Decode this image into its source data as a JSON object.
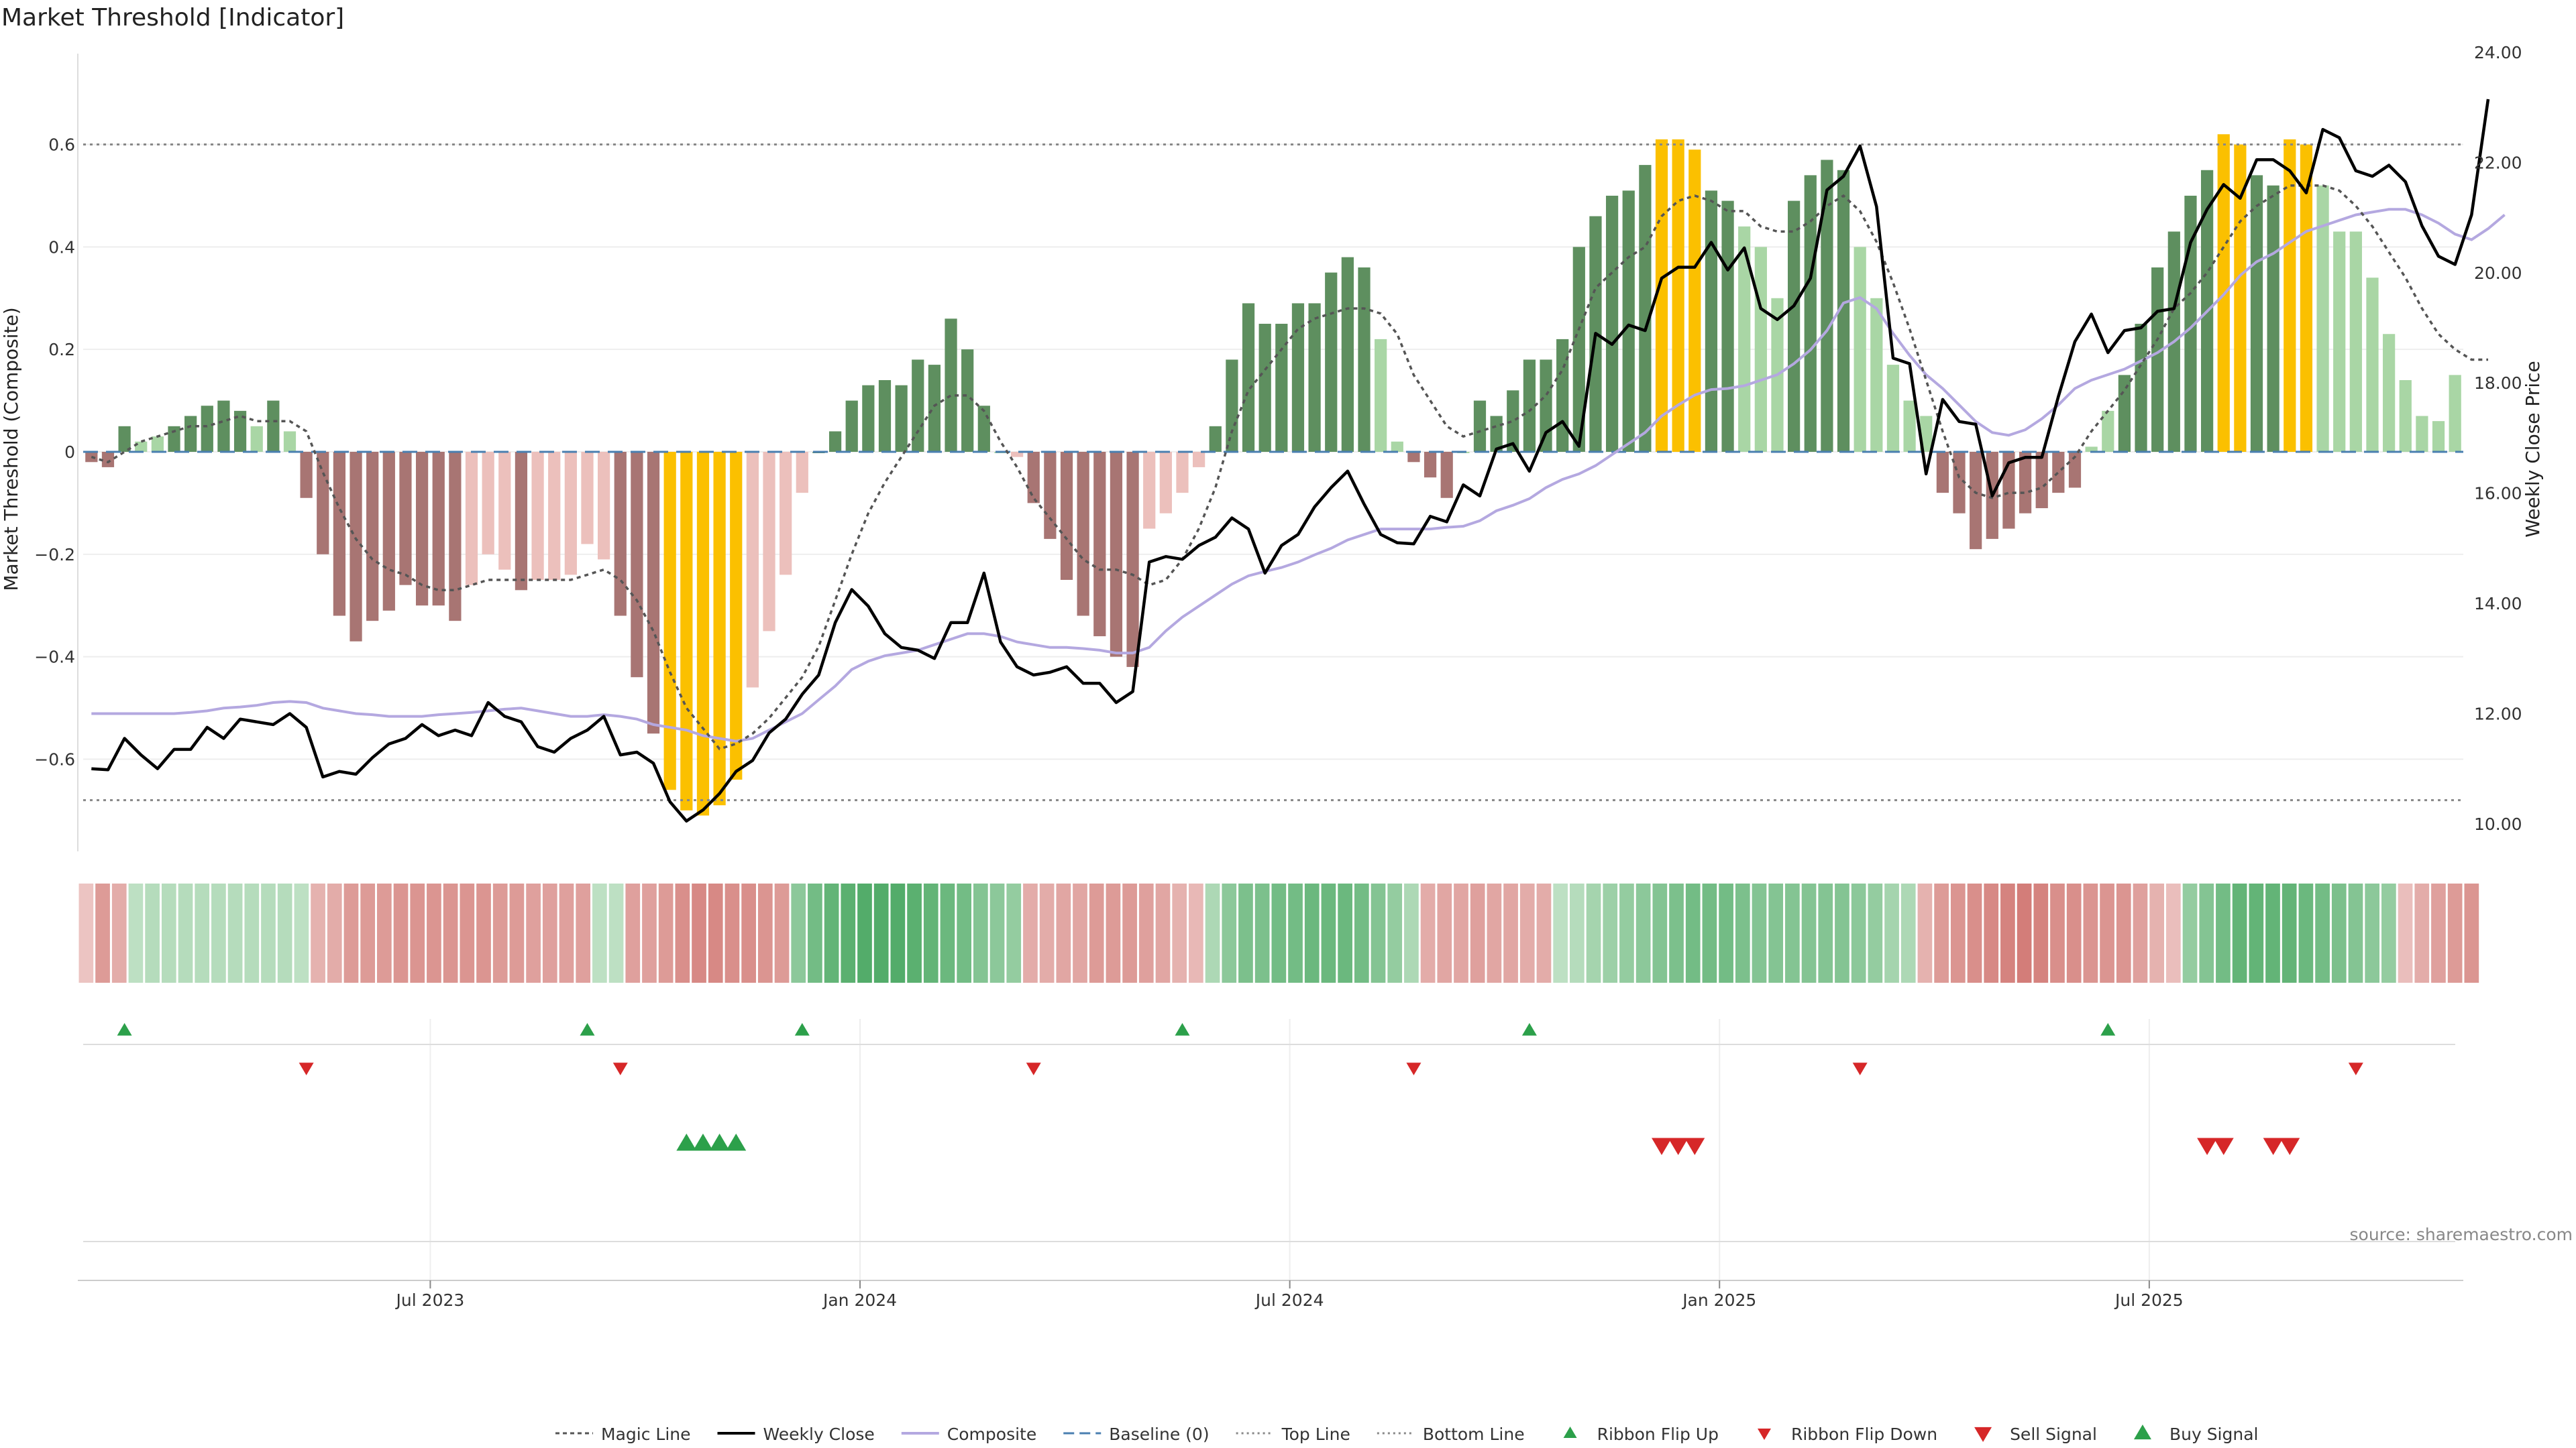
{
  "chart_data": {
    "type": "bar",
    "title": "Market Threshold [Indicator]",
    "ylabel_left": "Market Threshold (Composite)",
    "ylabel_right": "Weekly Close Price",
    "ylim_left": [
      -0.78,
      0.78
    ],
    "ylim_right": [
      9.5,
      24.0
    ],
    "left_ticks": [
      {
        "v": 0.6,
        "label": "0.6"
      },
      {
        "v": 0.4,
        "label": "0.4"
      },
      {
        "v": 0.2,
        "label": "0.2"
      },
      {
        "v": 0,
        "label": "0"
      },
      {
        "v": -0.2,
        "label": "−0.2"
      },
      {
        "v": -0.4,
        "label": "−0.4"
      },
      {
        "v": -0.6,
        "label": "−0.6"
      }
    ],
    "right_ticks": [
      {
        "v": 24,
        "label": "24.00"
      },
      {
        "v": 22,
        "label": "22.00"
      },
      {
        "v": 20,
        "label": "20.00"
      },
      {
        "v": 18,
        "label": "18.00"
      },
      {
        "v": 16,
        "label": "16.00"
      },
      {
        "v": 14,
        "label": "14.00"
      },
      {
        "v": 12,
        "label": "12.00"
      },
      {
        "v": 10,
        "label": "10.00"
      }
    ],
    "x_ticks": [
      {
        "week": 21,
        "label": "Jul 2023"
      },
      {
        "week": 47,
        "label": "Jan 2024"
      },
      {
        "week": 73,
        "label": "Jul 2024"
      },
      {
        "week": 99,
        "label": "Jan 2025"
      },
      {
        "week": 125,
        "label": "Jul 2025"
      }
    ],
    "top_line": 0.6,
    "bottom_line": -0.68,
    "composite": [
      -0.02,
      -0.03,
      0.05,
      0.02,
      0.03,
      0.05,
      0.07,
      0.09,
      0.1,
      0.08,
      0.05,
      0.1,
      0.04,
      -0.09,
      -0.2,
      -0.32,
      -0.37,
      -0.33,
      -0.31,
      -0.26,
      -0.3,
      -0.3,
      -0.33,
      -0.26,
      -0.2,
      -0.23,
      -0.27,
      -0.25,
      -0.25,
      -0.24,
      -0.18,
      -0.21,
      -0.32,
      -0.44,
      -0.55,
      -0.66,
      -0.7,
      -0.71,
      -0.69,
      -0.64,
      -0.46,
      -0.35,
      -0.24,
      -0.08,
      0,
      0.04,
      0.1,
      0.13,
      0.14,
      0.13,
      0.18,
      0.17,
      0.26,
      0.2,
      0.09,
      0,
      -0.01,
      -0.1,
      -0.17,
      -0.25,
      -0.32,
      -0.36,
      -0.4,
      -0.42,
      -0.15,
      -0.12,
      -0.08,
      -0.03,
      0.05,
      0.18,
      0.29,
      0.25,
      0.25,
      0.29,
      0.29,
      0.35,
      0.38,
      0.36,
      0.22,
      0.02,
      -0.02,
      -0.05,
      -0.09,
      0,
      0.1,
      0.07,
      0.12,
      0.18,
      0.18,
      0.22,
      0.4,
      0.46,
      0.5,
      0.51,
      0.56,
      0.61,
      0.61,
      0.59,
      0.51,
      0.49,
      0.44,
      0.4,
      0.3,
      0.49,
      0.54,
      0.57,
      0.55,
      0.4,
      0.3,
      0.17,
      0.1,
      0.07,
      -0.08,
      -0.12,
      -0.19,
      -0.17,
      -0.15,
      -0.12,
      -0.11,
      -0.08,
      -0.07,
      0.01,
      0.08,
      0.15,
      0.25,
      0.36,
      0.43,
      0.5,
      0.55,
      0.62,
      0.6,
      0.54,
      0.52,
      0.61,
      0.6,
      0.52,
      0.43,
      0.43,
      0.34,
      0.23,
      0.14,
      0.07,
      0.06,
      0.15
    ],
    "bar_colors": {
      "strong_neg": "#a87573",
      "light_neg": "#ecc0bc",
      "strong_pos": "#5e8f5f",
      "light_pos": "#a9d6a5",
      "extreme": "#fbc000"
    },
    "weekly_close": [
      11.0,
      10.98,
      11.55,
      11.25,
      11.0,
      11.35,
      11.35,
      11.75,
      11.55,
      11.9,
      11.85,
      11.8,
      12.0,
      11.75,
      10.85,
      10.95,
      10.9,
      11.2,
      11.45,
      11.55,
      11.8,
      11.6,
      11.7,
      11.6,
      12.2,
      11.95,
      11.85,
      11.4,
      11.3,
      11.55,
      11.7,
      11.95,
      11.25,
      11.3,
      11.1,
      10.4,
      10.05,
      10.25,
      10.55,
      10.95,
      11.15,
      11.65,
      11.9,
      12.35,
      12.7,
      13.65,
      14.25,
      13.95,
      13.45,
      13.2,
      13.15,
      13.0,
      13.65,
      13.65,
      14.55,
      13.3,
      12.85,
      12.7,
      12.75,
      12.85,
      12.55,
      12.55,
      12.2,
      12.4,
      14.75,
      14.85,
      14.8,
      15.05,
      15.2,
      15.55,
      15.35,
      14.55,
      15.05,
      15.25,
      15.75,
      16.1,
      16.4,
      15.8,
      15.25,
      15.1,
      15.08,
      15.58,
      15.48,
      16.15,
      15.95,
      16.8,
      16.9,
      16.4,
      17.1,
      17.3,
      16.85,
      18.9,
      18.7,
      19.05,
      18.95,
      19.9,
      20.1,
      20.1,
      20.55,
      20.05,
      20.45,
      19.35,
      19.15,
      19.4,
      19.9,
      21.5,
      21.75,
      22.3,
      21.2,
      18.45,
      18.35,
      16.35,
      17.7,
      17.3,
      17.25,
      15.95,
      16.55,
      16.65,
      16.65,
      17.75,
      18.75,
      19.25,
      18.55,
      18.95,
      19.0,
      19.3,
      19.35,
      20.55,
      21.15,
      21.6,
      21.35,
      22.05,
      22.05,
      21.85,
      21.45,
      22.6,
      22.45,
      21.85,
      21.75,
      21.95,
      21.65,
      20.85,
      20.3,
      20.15,
      21.05,
      23.15
    ],
    "composite_line": [
      12.0,
      12.0,
      12.0,
      12.0,
      12.0,
      12.0,
      12.02,
      12.05,
      12.1,
      12.12,
      12.15,
      12.2,
      12.22,
      12.2,
      12.1,
      12.05,
      12.0,
      11.98,
      11.95,
      11.95,
      11.95,
      11.98,
      12.0,
      12.02,
      12.05,
      12.08,
      12.1,
      12.05,
      12.0,
      11.95,
      11.95,
      11.98,
      11.95,
      11.9,
      11.8,
      11.75,
      11.7,
      11.6,
      11.55,
      11.5,
      11.55,
      11.7,
      11.85,
      12.0,
      12.25,
      12.5,
      12.8,
      12.95,
      13.05,
      13.1,
      13.15,
      13.25,
      13.35,
      13.45,
      13.45,
      13.4,
      13.3,
      13.25,
      13.2,
      13.2,
      13.18,
      13.15,
      13.1,
      13.1,
      13.2,
      13.5,
      13.75,
      13.95,
      14.15,
      14.35,
      14.5,
      14.58,
      14.65,
      14.75,
      14.88,
      15.0,
      15.15,
      15.25,
      15.35,
      15.35,
      15.35,
      15.35,
      15.38,
      15.4,
      15.5,
      15.68,
      15.78,
      15.9,
      16.1,
      16.25,
      16.35,
      16.5,
      16.7,
      16.9,
      17.1,
      17.4,
      17.6,
      17.78,
      17.88,
      17.9,
      17.95,
      18.05,
      18.15,
      18.35,
      18.6,
      18.95,
      19.45,
      19.55,
      19.35,
      18.9,
      18.5,
      18.15,
      17.9,
      17.6,
      17.3,
      17.1,
      17.05,
      17.15,
      17.35,
      17.6,
      17.9,
      18.05,
      18.15,
      18.25,
      18.4,
      18.55,
      18.75,
      19.0,
      19.3,
      19.6,
      19.95,
      20.2,
      20.35,
      20.55,
      20.75,
      20.85,
      20.95,
      21.05,
      21.1,
      21.15,
      21.15,
      21.05,
      20.9,
      20.7,
      20.6,
      20.8,
      21.05
    ],
    "magic_line": [
      -0.01,
      -0.02,
      0,
      0.02,
      0.03,
      0.04,
      0.05,
      0.05,
      0.06,
      0.07,
      0.06,
      0.06,
      0.06,
      0.04,
      -0.04,
      -0.11,
      -0.17,
      -0.21,
      -0.23,
      -0.24,
      -0.26,
      -0.27,
      -0.27,
      -0.26,
      -0.25,
      -0.25,
      -0.25,
      -0.25,
      -0.25,
      -0.25,
      -0.24,
      -0.23,
      -0.25,
      -0.29,
      -0.35,
      -0.43,
      -0.5,
      -0.54,
      -0.58,
      -0.57,
      -0.55,
      -0.52,
      -0.48,
      -0.44,
      -0.38,
      -0.29,
      -0.2,
      -0.12,
      -0.06,
      -0.01,
      0.04,
      0.09,
      0.11,
      0.11,
      0.08,
      0.02,
      -0.03,
      -0.09,
      -0.13,
      -0.17,
      -0.21,
      -0.23,
      -0.23,
      -0.24,
      -0.26,
      -0.25,
      -0.21,
      -0.15,
      -0.07,
      0.04,
      0.12,
      0.16,
      0.2,
      0.24,
      0.26,
      0.27,
      0.28,
      0.28,
      0.27,
      0.23,
      0.15,
      0.1,
      0.05,
      0.03,
      0.04,
      0.05,
      0.06,
      0.08,
      0.11,
      0.16,
      0.24,
      0.32,
      0.35,
      0.38,
      0.4,
      0.46,
      0.49,
      0.5,
      0.49,
      0.47,
      0.47,
      0.44,
      0.43,
      0.43,
      0.45,
      0.48,
      0.5,
      0.47,
      0.41,
      0.33,
      0.24,
      0.14,
      0.04,
      -0.05,
      -0.08,
      -0.09,
      -0.08,
      -0.08,
      -0.07,
      -0.04,
      -0.01,
      0.04,
      0.08,
      0.12,
      0.17,
      0.22,
      0.28,
      0.31,
      0.35,
      0.4,
      0.45,
      0.48,
      0.5,
      0.52,
      0.52,
      0.52,
      0.51,
      0.48,
      0.44,
      0.39,
      0.34,
      0.28,
      0.23,
      0.2,
      0.18,
      0.18
    ],
    "ribbon": [
      -0.15,
      -0.5,
      -0.35,
      0.2,
      0.25,
      0.25,
      0.25,
      0.25,
      0.25,
      0.25,
      0.25,
      0.25,
      0.25,
      0.2,
      -0.3,
      -0.35,
      -0.5,
      -0.5,
      -0.5,
      -0.55,
      -0.55,
      -0.55,
      -0.55,
      -0.55,
      -0.55,
      -0.5,
      -0.5,
      -0.45,
      -0.45,
      -0.45,
      -0.45,
      0.2,
      0.2,
      -0.45,
      -0.45,
      -0.5,
      -0.6,
      -0.65,
      -0.65,
      -0.6,
      -0.6,
      -0.55,
      -0.5,
      0.5,
      0.65,
      0.75,
      0.8,
      0.85,
      0.85,
      0.85,
      0.8,
      0.75,
      0.7,
      0.65,
      0.55,
      0.5,
      0.45,
      -0.35,
      -0.35,
      -0.4,
      -0.4,
      -0.5,
      -0.5,
      -0.5,
      -0.45,
      -0.4,
      -0.3,
      -0.25,
      0.3,
      0.5,
      0.6,
      0.6,
      0.65,
      0.65,
      0.7,
      0.7,
      0.7,
      0.65,
      0.55,
      0.45,
      0.3,
      -0.35,
      -0.4,
      -0.4,
      -0.45,
      -0.4,
      -0.4,
      -0.35,
      -0.35,
      0.2,
      0.25,
      0.35,
      0.4,
      0.45,
      0.5,
      0.55,
      0.6,
      0.65,
      0.65,
      0.65,
      0.6,
      0.55,
      0.55,
      0.55,
      0.55,
      0.55,
      0.55,
      0.5,
      0.45,
      0.35,
      0.3,
      -0.3,
      -0.5,
      -0.55,
      -0.6,
      -0.65,
      -0.7,
      -0.75,
      -0.7,
      -0.6,
      -0.6,
      -0.55,
      -0.55,
      -0.55,
      -0.45,
      -0.3,
      -0.2,
      0.45,
      0.55,
      0.65,
      0.75,
      0.75,
      0.75,
      0.75,
      0.7,
      0.65,
      0.6,
      0.55,
      0.5,
      0.45,
      -0.2,
      -0.35,
      -0.45,
      -0.5,
      -0.55
    ],
    "ribbon_flip_up": [
      2,
      30,
      43,
      66,
      87,
      122
    ],
    "ribbon_flip_down": [
      13,
      32,
      57,
      80,
      107,
      137
    ],
    "buy_signal": [
      36,
      37,
      38,
      39
    ],
    "sell_signal": [
      95,
      96,
      97,
      128,
      129,
      132,
      133
    ],
    "series": [
      {
        "name": "Magic Line",
        "color": "#555555"
      },
      {
        "name": "Weekly Close",
        "color": "#000000"
      },
      {
        "name": "Composite",
        "color": "#b4a8e0"
      },
      {
        "name": "Baseline (0)",
        "color": "#4a7fb0"
      },
      {
        "name": "Top Line",
        "color": "#888888"
      },
      {
        "name": "Bottom Line",
        "color": "#888888"
      },
      {
        "name": "Ribbon Flip Up",
        "color": "#2ca04a"
      },
      {
        "name": "Ribbon Flip Down",
        "color": "#d62728"
      },
      {
        "name": "Sell Signal",
        "color": "#d62728"
      },
      {
        "name": "Buy Signal",
        "color": "#2ca04a"
      }
    ],
    "legend_position": "bottom-center",
    "source_note": "source: sharemaestro.com"
  }
}
